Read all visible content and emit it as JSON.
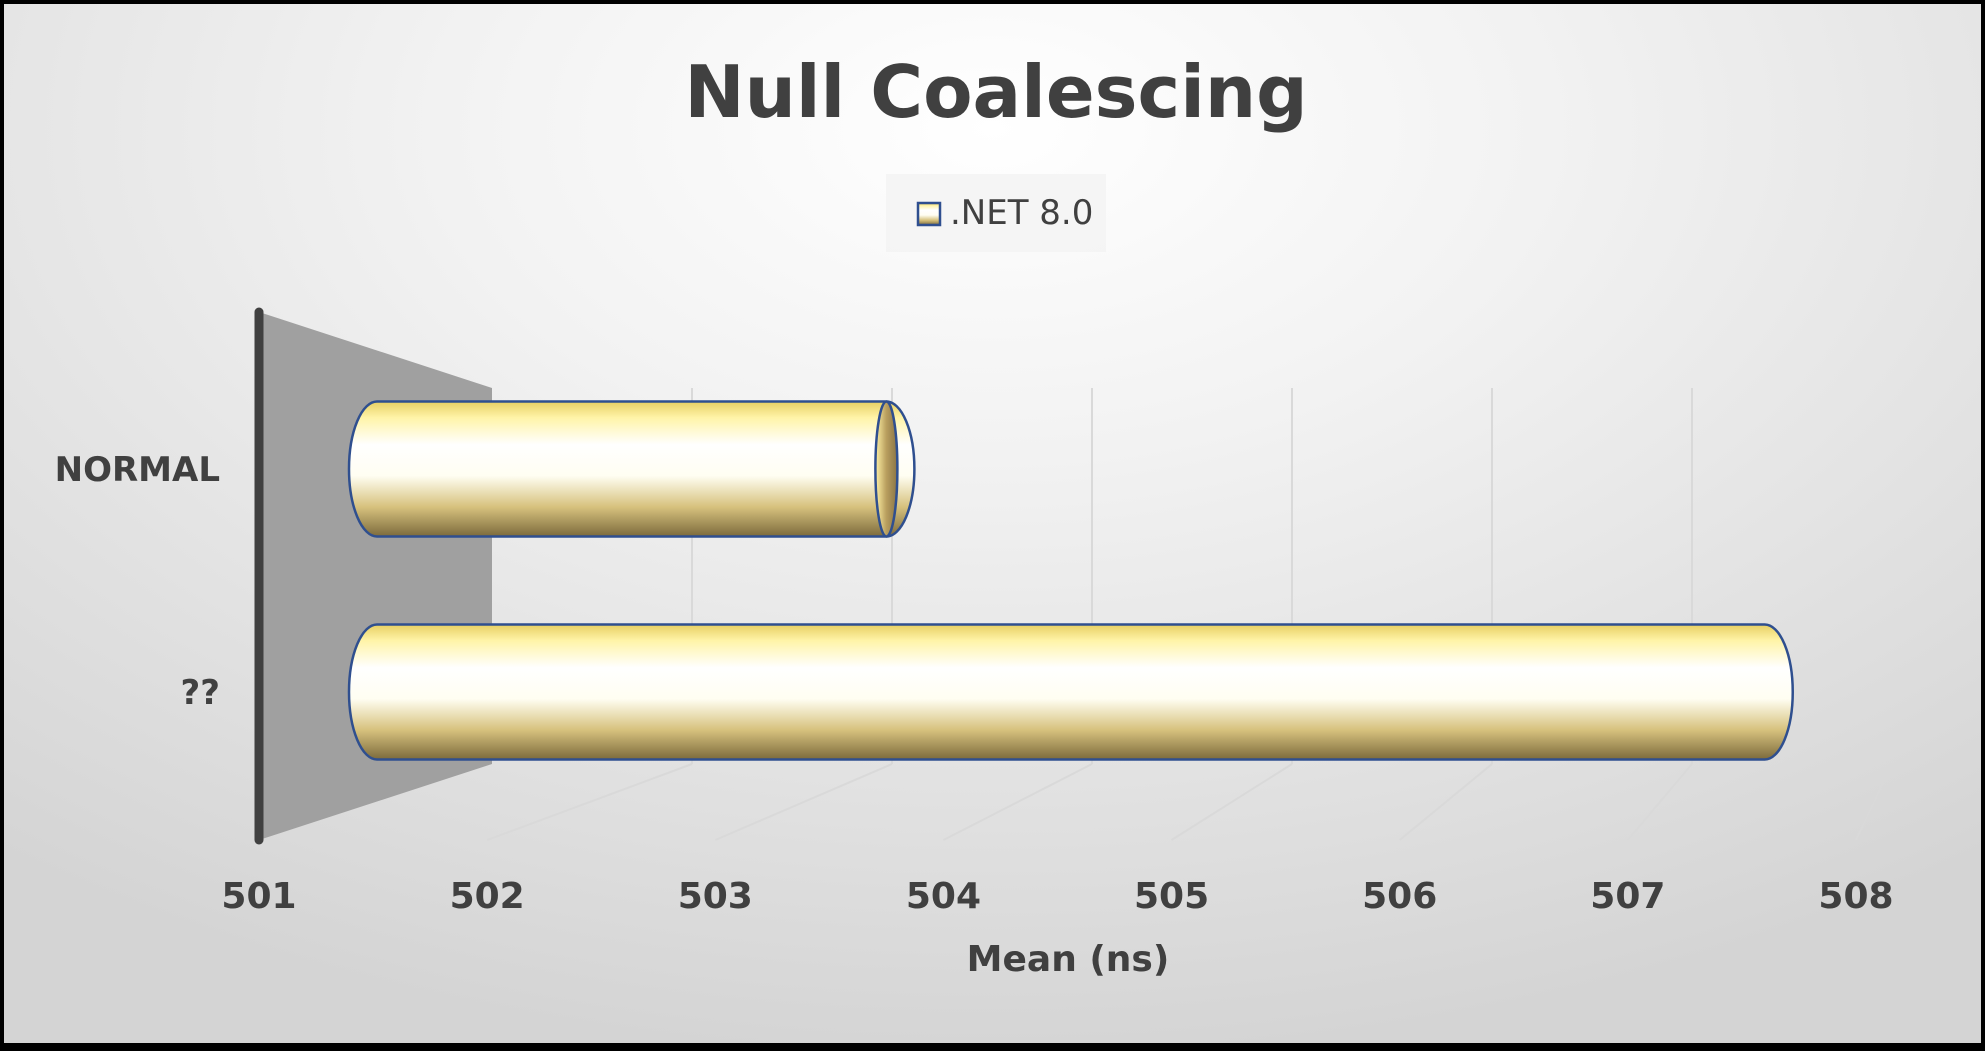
{
  "chart_data": {
    "type": "bar",
    "orientation": "horizontal",
    "style": "3d-cylinder",
    "title": "Null Coalescing",
    "xlabel": "Mean (ns)",
    "ylabel": "",
    "categories": [
      "NORMAL",
      "??"
    ],
    "series": [
      {
        "name": ".NET 8.0",
        "values": [
          503.75,
          507.6
        ]
      }
    ],
    "xlim": [
      501,
      508
    ],
    "x_ticks": [
      "501",
      "502",
      "503",
      "504",
      "505",
      "506",
      "507",
      "508"
    ],
    "grid": true,
    "legend_position": "top",
    "colors": {
      "bar_light": "#ffffff",
      "bar_mid": "#fff1a0",
      "bar_dark": "#8a7440",
      "bar_outline": "#2f4f8f",
      "text": "#404040",
      "wall": "#a0a0a0",
      "axis": "#404040",
      "grid": "#d9d9d9"
    }
  }
}
